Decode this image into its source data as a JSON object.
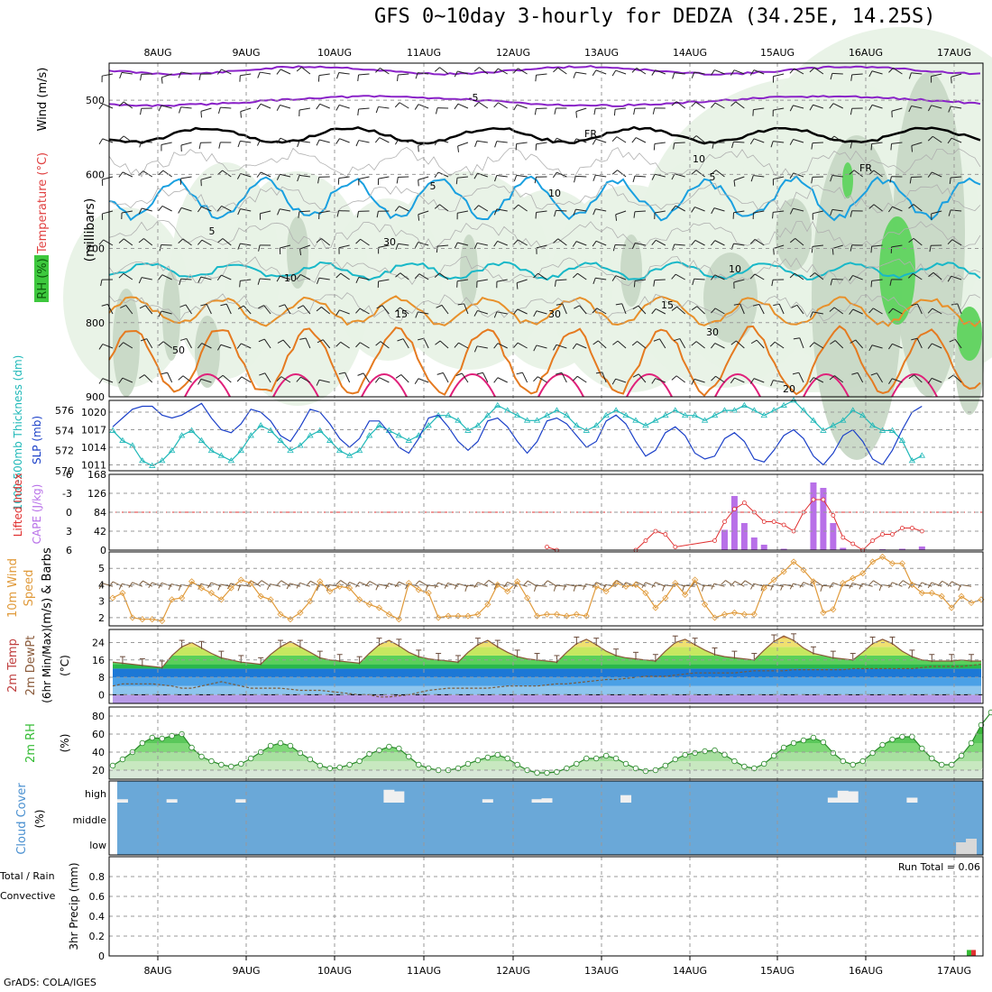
{
  "title": "GFS 0~10day 3-hourly for DEDZA (34.25E, 14.25S)",
  "footer": "GrADS: COLA/IGES",
  "dates": [
    "8AUG",
    "9AUG",
    "10AUG",
    "11AUG",
    "12AUG",
    "13AUG",
    "14AUG",
    "15AUG",
    "16AUG",
    "17AUG"
  ],
  "colors": {
    "rh_green_light": "#e8f2e6",
    "rh_green_mid": "#c8d8c6",
    "rh_green_dark": "#5fd45f",
    "slp": "#1a3fc8",
    "thickness": "#1fb8b8",
    "lifted": "#e03030",
    "cape": "#b870e8",
    "wind": "#e09a3a",
    "barb": "#7a5a3a",
    "rh2m": "#33bb33",
    "cloud": "#6aa8d8",
    "purple": "#8a22c8",
    "cyan": "#1aa0e0",
    "orange": "#e8902a",
    "magenta": "#e0207a"
  },
  "chart_data": [
    {
      "type": "contour",
      "panel": "upper-air",
      "legend": [
        "RH (%)",
        "Temperature (°C)",
        "Wind (m/s)"
      ],
      "ylabel": "(millibars)",
      "yticks": [
        500,
        600,
        700,
        800,
        900
      ],
      "ylim": [
        450,
        900
      ],
      "contour_labels": [
        "-5",
        "FR",
        "FR",
        "5",
        "5",
        "5",
        "10",
        "10",
        "15",
        "15",
        "20",
        "10",
        "10",
        "30",
        "30",
        "30",
        "50"
      ]
    },
    {
      "type": "line",
      "panel": "slp-thickness",
      "ylabel_left": "1000-500mb Thickness (dm)",
      "ylabel_right": "SLP (mb)",
      "yticks_left": [
        570,
        572,
        574,
        576
      ],
      "yticks_right": [
        1011,
        1014,
        1017,
        1020
      ],
      "ylim_left": [
        570,
        577
      ],
      "ylim_right": [
        1010,
        1022
      ],
      "series": [
        {
          "name": "SLP (mb)",
          "values": [
            1017.5,
            1019,
            1020.5,
            1021,
            1021,
            1019.5,
            1019,
            1019.5,
            1020.5,
            1021.5,
            1019,
            1017,
            1016.5,
            1018,
            1020.5,
            1020,
            1018.5,
            1016,
            1015,
            1017.5,
            1020.5,
            1020,
            1018,
            1015.5,
            1014,
            1015.5,
            1018.5,
            1018.5,
            1016.5,
            1014,
            1013,
            1015.5,
            1019,
            1019.5,
            1017.5,
            1015,
            1013.5,
            1015,
            1018.5,
            1019,
            1017.5,
            1015,
            1013,
            1015,
            1018.5,
            1019,
            1018,
            1016,
            1014,
            1015,
            1018.5,
            1019.5,
            1018,
            1015,
            1012.5,
            1013.5,
            1016.5,
            1017.5,
            1016,
            1013,
            1012,
            1012.5,
            1015.5,
            1016.5,
            1015,
            1012,
            1011.5,
            1013.5,
            1016,
            1017,
            1015.5,
            1012.5,
            1011,
            1013,
            1016,
            1017,
            1015,
            1012,
            1011,
            1013.5,
            1017,
            1020,
            1021
          ]
        },
        {
          "name": "1000-500mb Thickness (dm)",
          "values": [
            574,
            573,
            572.5,
            571,
            570.5,
            571,
            572,
            573.5,
            574,
            573,
            572,
            571.5,
            571,
            572,
            573.5,
            574.5,
            574,
            573,
            572,
            572.5,
            573.5,
            574,
            573,
            572,
            571.5,
            572,
            573.5,
            574.5,
            574,
            573.5,
            573,
            573.5,
            574.5,
            575.5,
            575.5,
            575,
            574,
            574.5,
            575.5,
            576.5,
            576,
            575.5,
            575,
            575,
            575.5,
            576,
            575.5,
            574.5,
            574,
            574.5,
            575.5,
            576,
            575.5,
            575,
            574.5,
            575,
            575.5,
            576,
            575.5,
            575.5,
            575,
            575.5,
            576,
            576,
            576.5,
            576,
            575.5,
            576,
            576.5,
            577,
            576,
            575,
            574,
            574.5,
            575,
            576,
            575.5,
            574.5,
            574,
            574,
            573,
            571,
            571.5
          ]
        }
      ]
    },
    {
      "type": "bar+line",
      "panel": "cape-lifted",
      "ylabel_left": "Lifted Index",
      "ylabel_right": "CAPE (J/kg)",
      "yticks_left": [
        6,
        3,
        0,
        -3,
        -6
      ],
      "yticks_right": [
        0,
        42,
        84,
        126,
        168
      ],
      "ylim_left": [
        6,
        -6
      ],
      "ylim_right": [
        0,
        168
      ],
      "cape_bars": [
        {
          "time": 62,
          "value": 45
        },
        {
          "time": 63,
          "value": 120
        },
        {
          "time": 64,
          "value": 60
        },
        {
          "time": 65,
          "value": 28
        },
        {
          "time": 66,
          "value": 12
        },
        {
          "time": 68,
          "value": 3
        },
        {
          "time": 71,
          "value": 150
        },
        {
          "time": 72,
          "value": 138
        },
        {
          "time": 73,
          "value": 60
        },
        {
          "time": 74,
          "value": 5
        },
        {
          "time": 78,
          "value": 2
        },
        {
          "time": 80,
          "value": 3
        },
        {
          "time": 82,
          "value": 8
        }
      ],
      "lifted_index": [
        {
          "time": 44,
          "value": 5.5
        },
        {
          "time": 45,
          "value": 6
        },
        {
          "time": 53,
          "value": 6
        },
        {
          "time": 54,
          "value": 4.5
        },
        {
          "time": 55,
          "value": 3
        },
        {
          "time": 56,
          "value": 3.5
        },
        {
          "time": 57,
          "value": 5.5
        },
        {
          "time": 61,
          "value": 4.5
        },
        {
          "time": 62,
          "value": 1.5
        },
        {
          "time": 63,
          "value": -0.5
        },
        {
          "time": 64,
          "value": -1.5
        },
        {
          "time": 65,
          "value": 0
        },
        {
          "time": 66,
          "value": 1.5
        },
        {
          "time": 67,
          "value": 1.5
        },
        {
          "time": 68,
          "value": 2
        },
        {
          "time": 69,
          "value": 3
        },
        {
          "time": 70,
          "value": 0
        },
        {
          "time": 71,
          "value": -2
        },
        {
          "time": 72,
          "value": -2
        },
        {
          "time": 73,
          "value": 0.5
        },
        {
          "time": 74,
          "value": 4
        },
        {
          "time": 75,
          "value": 5
        },
        {
          "time": 76,
          "value": 6
        },
        {
          "time": 77,
          "value": 4.5
        },
        {
          "time": 78,
          "value": 3.5
        },
        {
          "time": 79,
          "value": 3.5
        },
        {
          "time": 80,
          "value": 2.5
        },
        {
          "time": 81,
          "value": 2.5
        },
        {
          "time": 82,
          "value": 3
        }
      ]
    },
    {
      "type": "line",
      "panel": "wind10m",
      "ylabel": "10m Wind Speed (m/s) & Barbs",
      "yticks": [
        2,
        3,
        4,
        5
      ],
      "ylim": [
        1.5,
        6
      ],
      "series": [
        {
          "name": "10m Wind Speed",
          "values": [
            3.2,
            3.5,
            2,
            1.9,
            1.9,
            1.8,
            3.1,
            3.2,
            4.2,
            3.8,
            3.5,
            3.1,
            3.8,
            4.3,
            4.1,
            3.3,
            3.1,
            2.2,
            1.9,
            2.3,
            3,
            4.2,
            3.6,
            3.9,
            3.8,
            3.1,
            2.8,
            2.6,
            2.2,
            1.9,
            4.1,
            3.7,
            3.5,
            2,
            2.1,
            2.1,
            2.1,
            2.2,
            2.8,
            4,
            3.6,
            4.2,
            3.2,
            2.1,
            2.2,
            2.2,
            2.1,
            2.2,
            2.1,
            3.9,
            3.6,
            4.1,
            3.9,
            4,
            3.5,
            2.6,
            3.2,
            4.1,
            3.4,
            4.3,
            2.8,
            2,
            2.2,
            2.3,
            2.2,
            2.2,
            3.8,
            4.3,
            4.8,
            5.4,
            4.9,
            4.2,
            2.3,
            2.5,
            4.1,
            4.4,
            4.7,
            5.4,
            5.7,
            5.3,
            5.3,
            4,
            3.5,
            3.5,
            3.3,
            2.6,
            3.3,
            2.9,
            3.1
          ]
        }
      ]
    },
    {
      "type": "line+area",
      "panel": "temp2m",
      "ylabel": "2m Temp 2m DewPt (6hr Min/Max) (°C)",
      "yticks": [
        0,
        8,
        16,
        24
      ],
      "ylim": [
        -4,
        30
      ],
      "series": [
        {
          "name": "2m Temp",
          "values": [
            15,
            14.5,
            14,
            13.5,
            13,
            12.5,
            18,
            22,
            24,
            21.5,
            19,
            17,
            16,
            15,
            14.5,
            14,
            18.5,
            22,
            24.5,
            22,
            19.5,
            17,
            16,
            15.5,
            15,
            14.5,
            19,
            23,
            25,
            22.5,
            19.5,
            17.5,
            16.5,
            16,
            15.5,
            15,
            19.5,
            23,
            25,
            22,
            19.5,
            17.5,
            16.5,
            16,
            15.5,
            15,
            19.5,
            23.5,
            25.5,
            23,
            20,
            18,
            17,
            16.5,
            16,
            15.5,
            20,
            24,
            25.5,
            23,
            20.5,
            18.5,
            17.5,
            17,
            16.5,
            16,
            20.5,
            24.5,
            27,
            25,
            21.5,
            19,
            18,
            17,
            16.5,
            16,
            19.5,
            23.5,
            25.5,
            23.5,
            20,
            17.5,
            16,
            15.5,
            15.5,
            15.5,
            16,
            15.5,
            15.5
          ]
        },
        {
          "name": "2m DewPt",
          "values": [
            4,
            5,
            5,
            5,
            5,
            4.5,
            4,
            3,
            3,
            4,
            5,
            6,
            5,
            4,
            3,
            3,
            3,
            3,
            2.5,
            2,
            2,
            2,
            1.5,
            1,
            0.5,
            0,
            0,
            -1,
            -1,
            -0.5,
            0,
            1,
            2,
            2.5,
            3,
            3,
            3,
            3,
            3,
            3.5,
            4,
            4,
            4,
            4,
            4.5,
            5,
            5,
            5.5,
            6,
            6.5,
            7,
            7,
            7.5,
            8,
            8.5,
            8.5,
            8.5,
            9,
            9.5,
            10,
            10,
            10,
            10,
            10,
            10.5,
            11,
            11,
            11,
            11,
            11.5,
            11.5,
            11.5,
            11.5,
            11.5,
            11.5,
            12,
            12,
            12,
            12,
            12,
            12,
            12,
            12.5,
            13,
            13,
            13,
            13,
            13.5,
            14
          ]
        }
      ]
    },
    {
      "type": "area",
      "panel": "rh2m",
      "ylabel": "2m RH (%)",
      "yticks": [
        20,
        40,
        60,
        80
      ],
      "ylim": [
        10,
        90
      ],
      "series": [
        {
          "name": "2m RH",
          "values": [
            25,
            32,
            40,
            50,
            56,
            55,
            58,
            60,
            45,
            35,
            30,
            26,
            24,
            27,
            33,
            40,
            47,
            50,
            47,
            39,
            32,
            25,
            22,
            23,
            26,
            30,
            38,
            42,
            46,
            44,
            35,
            26,
            22,
            20,
            20,
            22,
            27,
            31,
            34,
            37,
            33,
            26,
            20,
            17,
            17,
            18,
            22,
            27,
            33,
            33,
            36,
            33,
            27,
            22,
            19,
            20,
            25,
            32,
            37,
            39,
            41,
            42,
            37,
            30,
            24,
            22,
            27,
            36,
            45,
            50,
            53,
            56,
            51,
            39,
            30,
            26,
            30,
            39,
            48,
            54,
            57,
            57,
            44,
            33,
            26,
            26,
            36,
            50,
            70,
            84,
            86,
            80
          ]
        }
      ]
    },
    {
      "type": "bar",
      "panel": "cloud-cover",
      "ylabel": "Cloud Cover (%)",
      "yticks": [
        "high",
        "middle",
        "low"
      ],
      "high_layer_segments": [
        {
          "time": 1,
          "value": 5
        },
        {
          "time": 6,
          "value": 5
        },
        {
          "time": 13,
          "value": 5
        },
        {
          "time": 28,
          "value": 35
        },
        {
          "time": 29,
          "value": 30
        },
        {
          "time": 38,
          "value": 5
        },
        {
          "time": 43,
          "value": 5
        },
        {
          "time": 44,
          "value": 8
        },
        {
          "time": 52,
          "value": 18
        },
        {
          "time": 73,
          "value": 10
        },
        {
          "time": 74,
          "value": 32
        },
        {
          "time": 75,
          "value": 30
        },
        {
          "time": 81,
          "value": 10
        }
      ],
      "low_layer_segments": [
        {
          "time": 86,
          "value": 30
        },
        {
          "time": 87,
          "value": 40
        }
      ]
    },
    {
      "type": "bar",
      "panel": "precip",
      "ylabel": "3hr Precip (mm)",
      "legend": [
        "Total / Rain",
        "Convective"
      ],
      "yticks": [
        0,
        0.2,
        0.4,
        0.6,
        0.8
      ],
      "ylim": [
        0,
        1
      ],
      "annotation": "Run Total = 0.06",
      "bars": [
        {
          "time": 87,
          "total": 0.06,
          "convective": 0.06
        }
      ]
    }
  ]
}
